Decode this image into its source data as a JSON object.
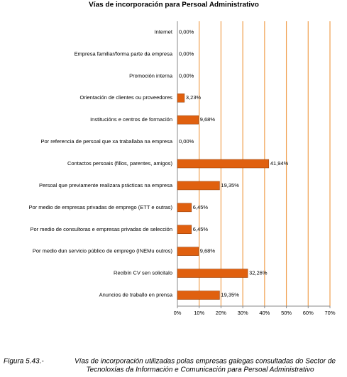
{
  "chart_data": {
    "type": "hbar",
    "title": "Vías de incorporación para Persoal Administrativo",
    "categories": [
      "Internet",
      "Empresa familiar/forma parte da empresa",
      "Promoción interna",
      "Orientación de clientes ou proveedores",
      "Institucións e centros de formación",
      "Por referencia de persoal que xa traballaba na empresa",
      "Contactos persoais (fillos, parentes, amigos)",
      "Persoal que previamente realizara prácticas na empresa",
      "Por medio de empresas privadas de emprego (ETT e outras)",
      "Por medio de consultoras e empresas privadas de selección",
      "Por medio dun servicio público de emprego (INEMu outros)",
      "Recibín CV sen solicitalo",
      "Anuncios de traballo en prensa"
    ],
    "values": [
      0,
      0,
      0,
      3.23,
      9.68,
      0,
      41.94,
      19.35,
      6.45,
      6.45,
      9.68,
      32.26,
      19.35
    ],
    "value_labels": [
      "0,00%",
      "0,00%",
      "0,00%",
      "3,23%",
      "9,68%",
      "0,00%",
      "41,94%",
      "19,35%",
      "6,45%",
      "6,45%",
      "9,68%",
      "32,26%",
      "19,35%"
    ],
    "color": "#e0600f",
    "grid_color": "#f0a050",
    "grid": true,
    "xlim": [
      0,
      70
    ],
    "xticks": [
      {
        "value": 0,
        "label": "0%"
      },
      {
        "value": 10,
        "label": "10%"
      },
      {
        "value": 20,
        "label": "20%"
      },
      {
        "value": 30,
        "label": "30%"
      },
      {
        "value": 40,
        "label": "40%"
      },
      {
        "value": 50,
        "label": "50%"
      },
      {
        "value": 60,
        "label": "60%"
      },
      {
        "value": 70,
        "label": "70%"
      }
    ],
    "caption_label": "Figura 5.43.-",
    "caption_lines": [
      "Vías de incorporación utilizadas polas empresas galegas consultadas do Sector de",
      "Tecnoloxías da Información e Comunicación para Persoal Administrativo"
    ]
  }
}
